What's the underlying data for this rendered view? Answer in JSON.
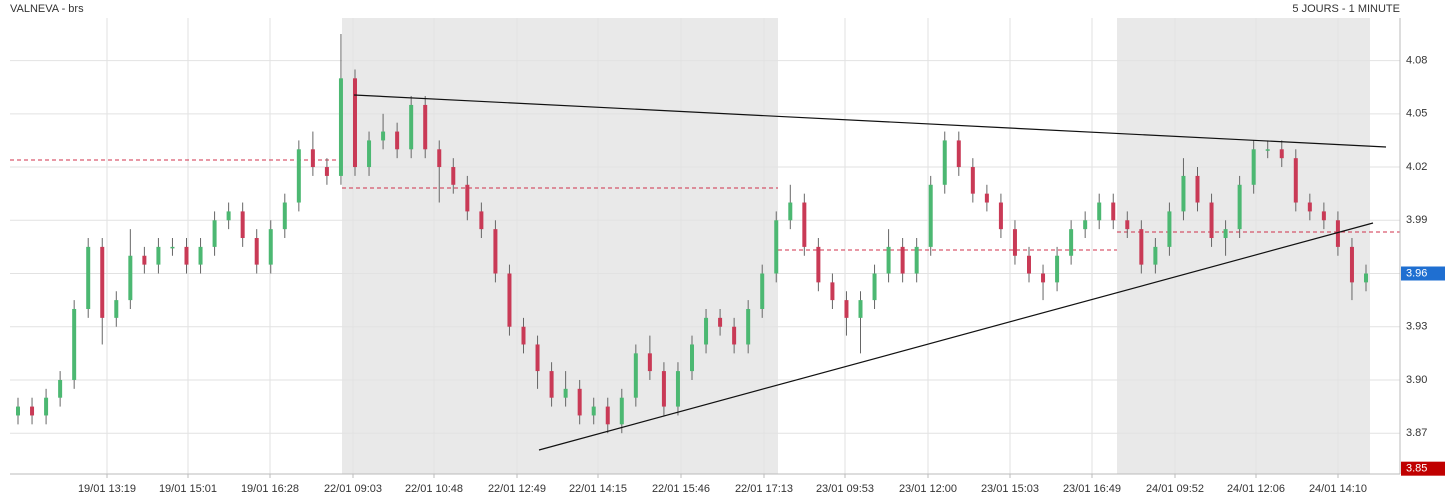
{
  "chart_data": {
    "type": "candlestick",
    "title": "VALNEVA - brs",
    "subtitle": "5 JOURS - 1 MINUTE",
    "x_labels": [
      "19/01 13:19",
      "19/01 15:01",
      "19/01 16:28",
      "22/01 09:03",
      "22/01 10:48",
      "22/01 12:49",
      "22/01 14:15",
      "22/01 15:46",
      "22/01 17:13",
      "23/01 09:53",
      "23/01 12:00",
      "23/01 15:03",
      "23/01 16:49",
      "24/01 09:52",
      "24/01 12:06",
      "24/01 14:10"
    ],
    "open": [
      3.88,
      3.885,
      3.88,
      3.89,
      3.9,
      3.94,
      3.975,
      3.935,
      3.945,
      3.97,
      3.965,
      3.975,
      3.975,
      3.965,
      3.975,
      3.99,
      3.995,
      3.98,
      3.965,
      3.985,
      4.0,
      4.03,
      4.02,
      4.015,
      4.07,
      4.02,
      4.035,
      4.04,
      4.03,
      4.055,
      4.03,
      4.02,
      4.01,
      3.995,
      3.985,
      3.96,
      3.93,
      3.92,
      3.905,
      3.89,
      3.895,
      3.88,
      3.885,
      3.875,
      3.89,
      3.915,
      3.905,
      3.885,
      3.905,
      3.92,
      3.935,
      3.93,
      3.92,
      3.94,
      3.96,
      3.99,
      4.0,
      3.975,
      3.955,
      3.945,
      3.935,
      3.945,
      3.96,
      3.975,
      3.96,
      3.975,
      4.01,
      4.035,
      4.02,
      4.005,
      4.0,
      3.985,
      3.97,
      3.96,
      3.955,
      3.97,
      3.985,
      3.99,
      4.0,
      3.99,
      3.985,
      3.965,
      3.975,
      3.995,
      4.015,
      4.0,
      3.98,
      3.985,
      4.01,
      4.03,
      4.03,
      4.025,
      4.0,
      3.995,
      3.99,
      3.975,
      3.955
    ],
    "high": [
      3.89,
      3.89,
      3.895,
      3.905,
      3.945,
      3.98,
      3.98,
      3.95,
      3.985,
      3.975,
      3.98,
      3.98,
      3.98,
      3.98,
      3.995,
      4.0,
      4.0,
      3.985,
      3.99,
      4.005,
      4.035,
      4.04,
      4.025,
      4.095,
      4.075,
      4.04,
      4.05,
      4.045,
      4.06,
      4.06,
      4.035,
      4.025,
      4.015,
      4.0,
      3.99,
      3.965,
      3.935,
      3.925,
      3.91,
      3.905,
      3.9,
      3.89,
      3.89,
      3.895,
      3.92,
      3.925,
      3.91,
      3.91,
      3.925,
      3.94,
      3.94,
      3.935,
      3.945,
      3.965,
      3.995,
      4.01,
      4.005,
      3.98,
      3.96,
      3.95,
      3.95,
      3.965,
      3.985,
      3.98,
      3.98,
      4.015,
      4.04,
      4.04,
      4.025,
      4.01,
      4.005,
      3.99,
      3.975,
      3.965,
      3.975,
      3.99,
      3.995,
      4.005,
      4.005,
      3.995,
      3.99,
      3.98,
      4.0,
      4.025,
      4.02,
      4.005,
      3.99,
      4.015,
      4.035,
      4.035,
      4.035,
      4.03,
      4.005,
      4.0,
      3.995,
      3.98,
      3.965
    ],
    "low": [
      3.875,
      3.875,
      3.875,
      3.885,
      3.895,
      3.935,
      3.92,
      3.93,
      3.94,
      3.96,
      3.96,
      3.97,
      3.96,
      3.96,
      3.97,
      3.985,
      3.975,
      3.96,
      3.96,
      3.98,
      3.995,
      4.015,
      4.01,
      4.01,
      4.015,
      4.015,
      4.03,
      4.025,
      4.025,
      4.025,
      4.0,
      4.005,
      3.99,
      3.98,
      3.955,
      3.925,
      3.915,
      3.895,
      3.885,
      3.885,
      3.875,
      3.875,
      3.87,
      3.87,
      3.885,
      3.9,
      3.88,
      3.88,
      3.9,
      3.915,
      3.925,
      3.915,
      3.915,
      3.935,
      3.955,
      3.985,
      3.97,
      3.95,
      3.94,
      3.925,
      3.915,
      3.94,
      3.955,
      3.955,
      3.955,
      3.97,
      4.005,
      4.015,
      4.0,
      3.995,
      3.98,
      3.965,
      3.955,
      3.945,
      3.95,
      3.965,
      3.98,
      3.985,
      3.985,
      3.98,
      3.96,
      3.96,
      3.97,
      3.99,
      3.995,
      3.975,
      3.97,
      3.98,
      4.005,
      4.025,
      4.02,
      3.995,
      3.99,
      3.985,
      3.97,
      3.945,
      3.95
    ],
    "close": [
      3.885,
      3.88,
      3.89,
      3.9,
      3.94,
      3.975,
      3.935,
      3.945,
      3.97,
      3.965,
      3.975,
      3.975,
      3.965,
      3.975,
      3.99,
      3.995,
      3.98,
      3.965,
      3.985,
      4.0,
      4.03,
      4.02,
      4.015,
      4.07,
      4.02,
      4.035,
      4.04,
      4.03,
      4.055,
      4.03,
      4.02,
      4.01,
      3.995,
      3.985,
      3.96,
      3.93,
      3.92,
      3.905,
      3.89,
      3.895,
      3.88,
      3.885,
      3.875,
      3.89,
      3.915,
      3.905,
      3.885,
      3.905,
      3.92,
      3.935,
      3.93,
      3.92,
      3.94,
      3.96,
      3.99,
      4.0,
      3.975,
      3.955,
      3.945,
      3.935,
      3.945,
      3.96,
      3.975,
      3.96,
      3.975,
      4.01,
      4.035,
      4.02,
      4.005,
      4.0,
      3.985,
      3.97,
      3.96,
      3.955,
      3.97,
      3.985,
      3.99,
      4.0,
      3.99,
      3.985,
      3.965,
      3.975,
      3.995,
      4.015,
      4.0,
      3.98,
      3.985,
      4.01,
      4.03,
      4.03,
      4.025,
      4.0,
      3.995,
      3.99,
      3.975,
      3.955,
      3.96
    ],
    "up_color": "#4cb872",
    "down_color": "#c93a56",
    "ylim": [
      3.847,
      4.104
    ],
    "yticks": [
      3.87,
      {
        "value": 3.9,
        "label": "3.90"
      },
      3.93,
      3.96,
      3.99,
      4.02,
      4.05,
      4.08
    ],
    "grid": true,
    "last_value": 3.96,
    "last_color": "#1f6fd1",
    "low_value": 3.85,
    "low_color": "#c00000"
  }
}
